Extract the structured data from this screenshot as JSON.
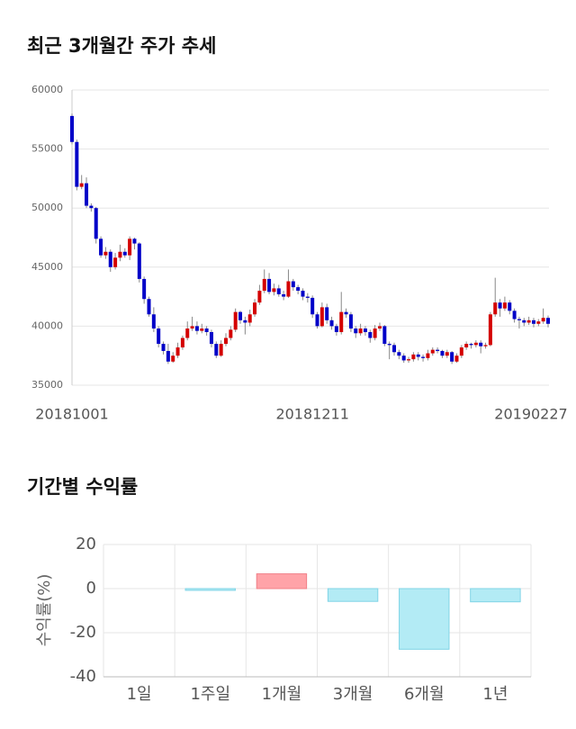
{
  "chart_data": [
    {
      "type": "candlestick",
      "title": "최근 3개월간 주가 추세",
      "categories": [
        "20181001",
        null,
        null,
        null,
        null,
        null,
        null,
        null,
        null,
        null,
        null,
        null,
        null,
        null,
        null,
        null,
        null,
        null,
        null,
        null,
        null,
        null,
        null,
        null,
        null,
        null,
        null,
        null,
        null,
        null,
        null,
        null,
        null,
        null,
        null,
        null,
        null,
        null,
        null,
        null,
        null,
        null,
        null,
        null,
        null,
        null,
        null,
        null,
        null,
        null,
        "20181211",
        null,
        null,
        null,
        null,
        null,
        null,
        null,
        null,
        null,
        null,
        null,
        null,
        null,
        null,
        null,
        null,
        null,
        null,
        null,
        null,
        null,
        null,
        null,
        null,
        null,
        null,
        null,
        null,
        null,
        null,
        null,
        null,
        null,
        null,
        null,
        null,
        null,
        null,
        null,
        null,
        null,
        null,
        null,
        null,
        null,
        null,
        null,
        null,
        "20190227"
      ],
      "open": [
        57800,
        55600,
        51800,
        52100,
        50200,
        50000,
        47400,
        46000,
        46300,
        45000,
        45800,
        46300,
        46000,
        47400,
        47000,
        44000,
        42300,
        41000,
        39800,
        38500,
        37900,
        37000,
        37500,
        38200,
        39000,
        39800,
        40000,
        39600,
        39800,
        39500,
        38500,
        37500,
        38500,
        39000,
        39700,
        41200,
        40500,
        40300,
        41000,
        42000,
        43000,
        44000,
        42900,
        43200,
        42700,
        42500,
        43800,
        43300,
        43000,
        42500,
        42400,
        41000,
        40000,
        41600,
        40500,
        40000,
        39500,
        41200,
        41000,
        39800,
        39400,
        39800,
        39500,
        39000,
        39800,
        40000,
        38500,
        38400,
        37800,
        37500,
        37100,
        37200,
        37600,
        37400,
        37300,
        37700,
        38000,
        37900,
        37500,
        37800,
        37000,
        37500,
        38200,
        38500,
        38400,
        38600,
        38300,
        38400,
        41000,
        42000,
        41500,
        42000,
        41300,
        40600,
        40500,
        40300,
        40500,
        40200,
        40400,
        40700
      ],
      "high": [
        58000,
        55800,
        52800,
        52600,
        50400,
        50100,
        47600,
        46700,
        46500,
        46200,
        46900,
        46600,
        47600,
        47500,
        47100,
        44200,
        42500,
        41600,
        40000,
        38700,
        38500,
        37800,
        38600,
        39200,
        40400,
        40800,
        40400,
        40200,
        40000,
        39700,
        38700,
        38800,
        39400,
        40000,
        41500,
        41300,
        40800,
        41400,
        42300,
        43500,
        44800,
        44500,
        43600,
        43500,
        43000,
        44800,
        44000,
        43500,
        43200,
        42800,
        42600,
        41200,
        42000,
        41900,
        40800,
        40200,
        42900,
        41500,
        41200,
        40000,
        40200,
        40000,
        39700,
        40100,
        40300,
        40100,
        38700,
        38600,
        38000,
        37700,
        37400,
        37800,
        37800,
        37600,
        38000,
        38200,
        38200,
        38000,
        38000,
        37900,
        37700,
        38400,
        38700,
        38600,
        38800,
        38800,
        38600,
        41200,
        44100,
        42300,
        42500,
        42200,
        41500,
        40800,
        40700,
        40800,
        40700,
        40600,
        41500,
        40900
      ],
      "low": [
        55400,
        51500,
        51600,
        50000,
        49700,
        47000,
        45800,
        45700,
        44600,
        44800,
        45500,
        45800,
        45600,
        46500,
        43700,
        41900,
        40800,
        39500,
        38200,
        37600,
        36800,
        36900,
        37300,
        38000,
        38800,
        39600,
        39300,
        39400,
        39200,
        38200,
        37300,
        37400,
        38300,
        38800,
        39500,
        40200,
        39300,
        40000,
        40800,
        41800,
        42800,
        42700,
        42600,
        42500,
        42200,
        42400,
        43000,
        42700,
        42200,
        42000,
        40700,
        39800,
        39900,
        40200,
        39700,
        39200,
        39300,
        40700,
        39500,
        39000,
        39200,
        39200,
        38600,
        38800,
        39600,
        38300,
        37200,
        37500,
        37200,
        36900,
        36900,
        37000,
        37100,
        37000,
        37100,
        37500,
        37700,
        37300,
        37300,
        36800,
        36900,
        37300,
        38000,
        38100,
        38200,
        37700,
        38100,
        38300,
        40800,
        40800,
        41300,
        41000,
        40300,
        39800,
        40000,
        40100,
        39900,
        40000,
        40200,
        39900
      ],
      "close": [
        55600,
        51800,
        52100,
        50200,
        50000,
        47400,
        46000,
        46300,
        45000,
        45800,
        46300,
        46000,
        47400,
        47000,
        44000,
        42300,
        41000,
        39800,
        38500,
        37900,
        37000,
        37500,
        38200,
        39000,
        39800,
        40000,
        39600,
        39800,
        39500,
        38500,
        37500,
        38500,
        39000,
        39700,
        41200,
        40500,
        40300,
        41000,
        42000,
        43000,
        44000,
        42900,
        43200,
        42700,
        42500,
        43800,
        43300,
        43000,
        42500,
        42400,
        41000,
        40000,
        41600,
        40500,
        40000,
        39500,
        41200,
        41000,
        39800,
        39400,
        39800,
        39500,
        39000,
        39800,
        40000,
        38500,
        38400,
        37800,
        37500,
        37100,
        37200,
        37600,
        37400,
        37300,
        37700,
        38000,
        37900,
        37500,
        37800,
        37000,
        37500,
        38200,
        38500,
        38400,
        38600,
        38300,
        38400,
        41000,
        42000,
        41500,
        42000,
        41300,
        40600,
        40500,
        40300,
        40500,
        40200,
        40400,
        40700,
        40200
      ],
      "up_color": "#d40000",
      "down_color": "#0000c8",
      "ylim": [
        35000,
        60000
      ],
      "yticks": [
        35000,
        40000,
        45000,
        50000,
        55000,
        60000
      ],
      "grid": true
    },
    {
      "type": "bar",
      "title": "기간별 수익률",
      "y_label": "수익률(%)",
      "categories": [
        "1일",
        "1주일",
        "1개월",
        "3개월",
        "6개월",
        "1년"
      ],
      "values": [
        0,
        -0.8,
        6.7,
        -5.8,
        -27.5,
        -6
      ],
      "positive_color": "#ffa3a8",
      "negative_color": "#b3ebf5",
      "ylim": [
        -40,
        20
      ],
      "yticks": [
        -40,
        -20,
        0,
        20
      ],
      "grid": true
    }
  ]
}
